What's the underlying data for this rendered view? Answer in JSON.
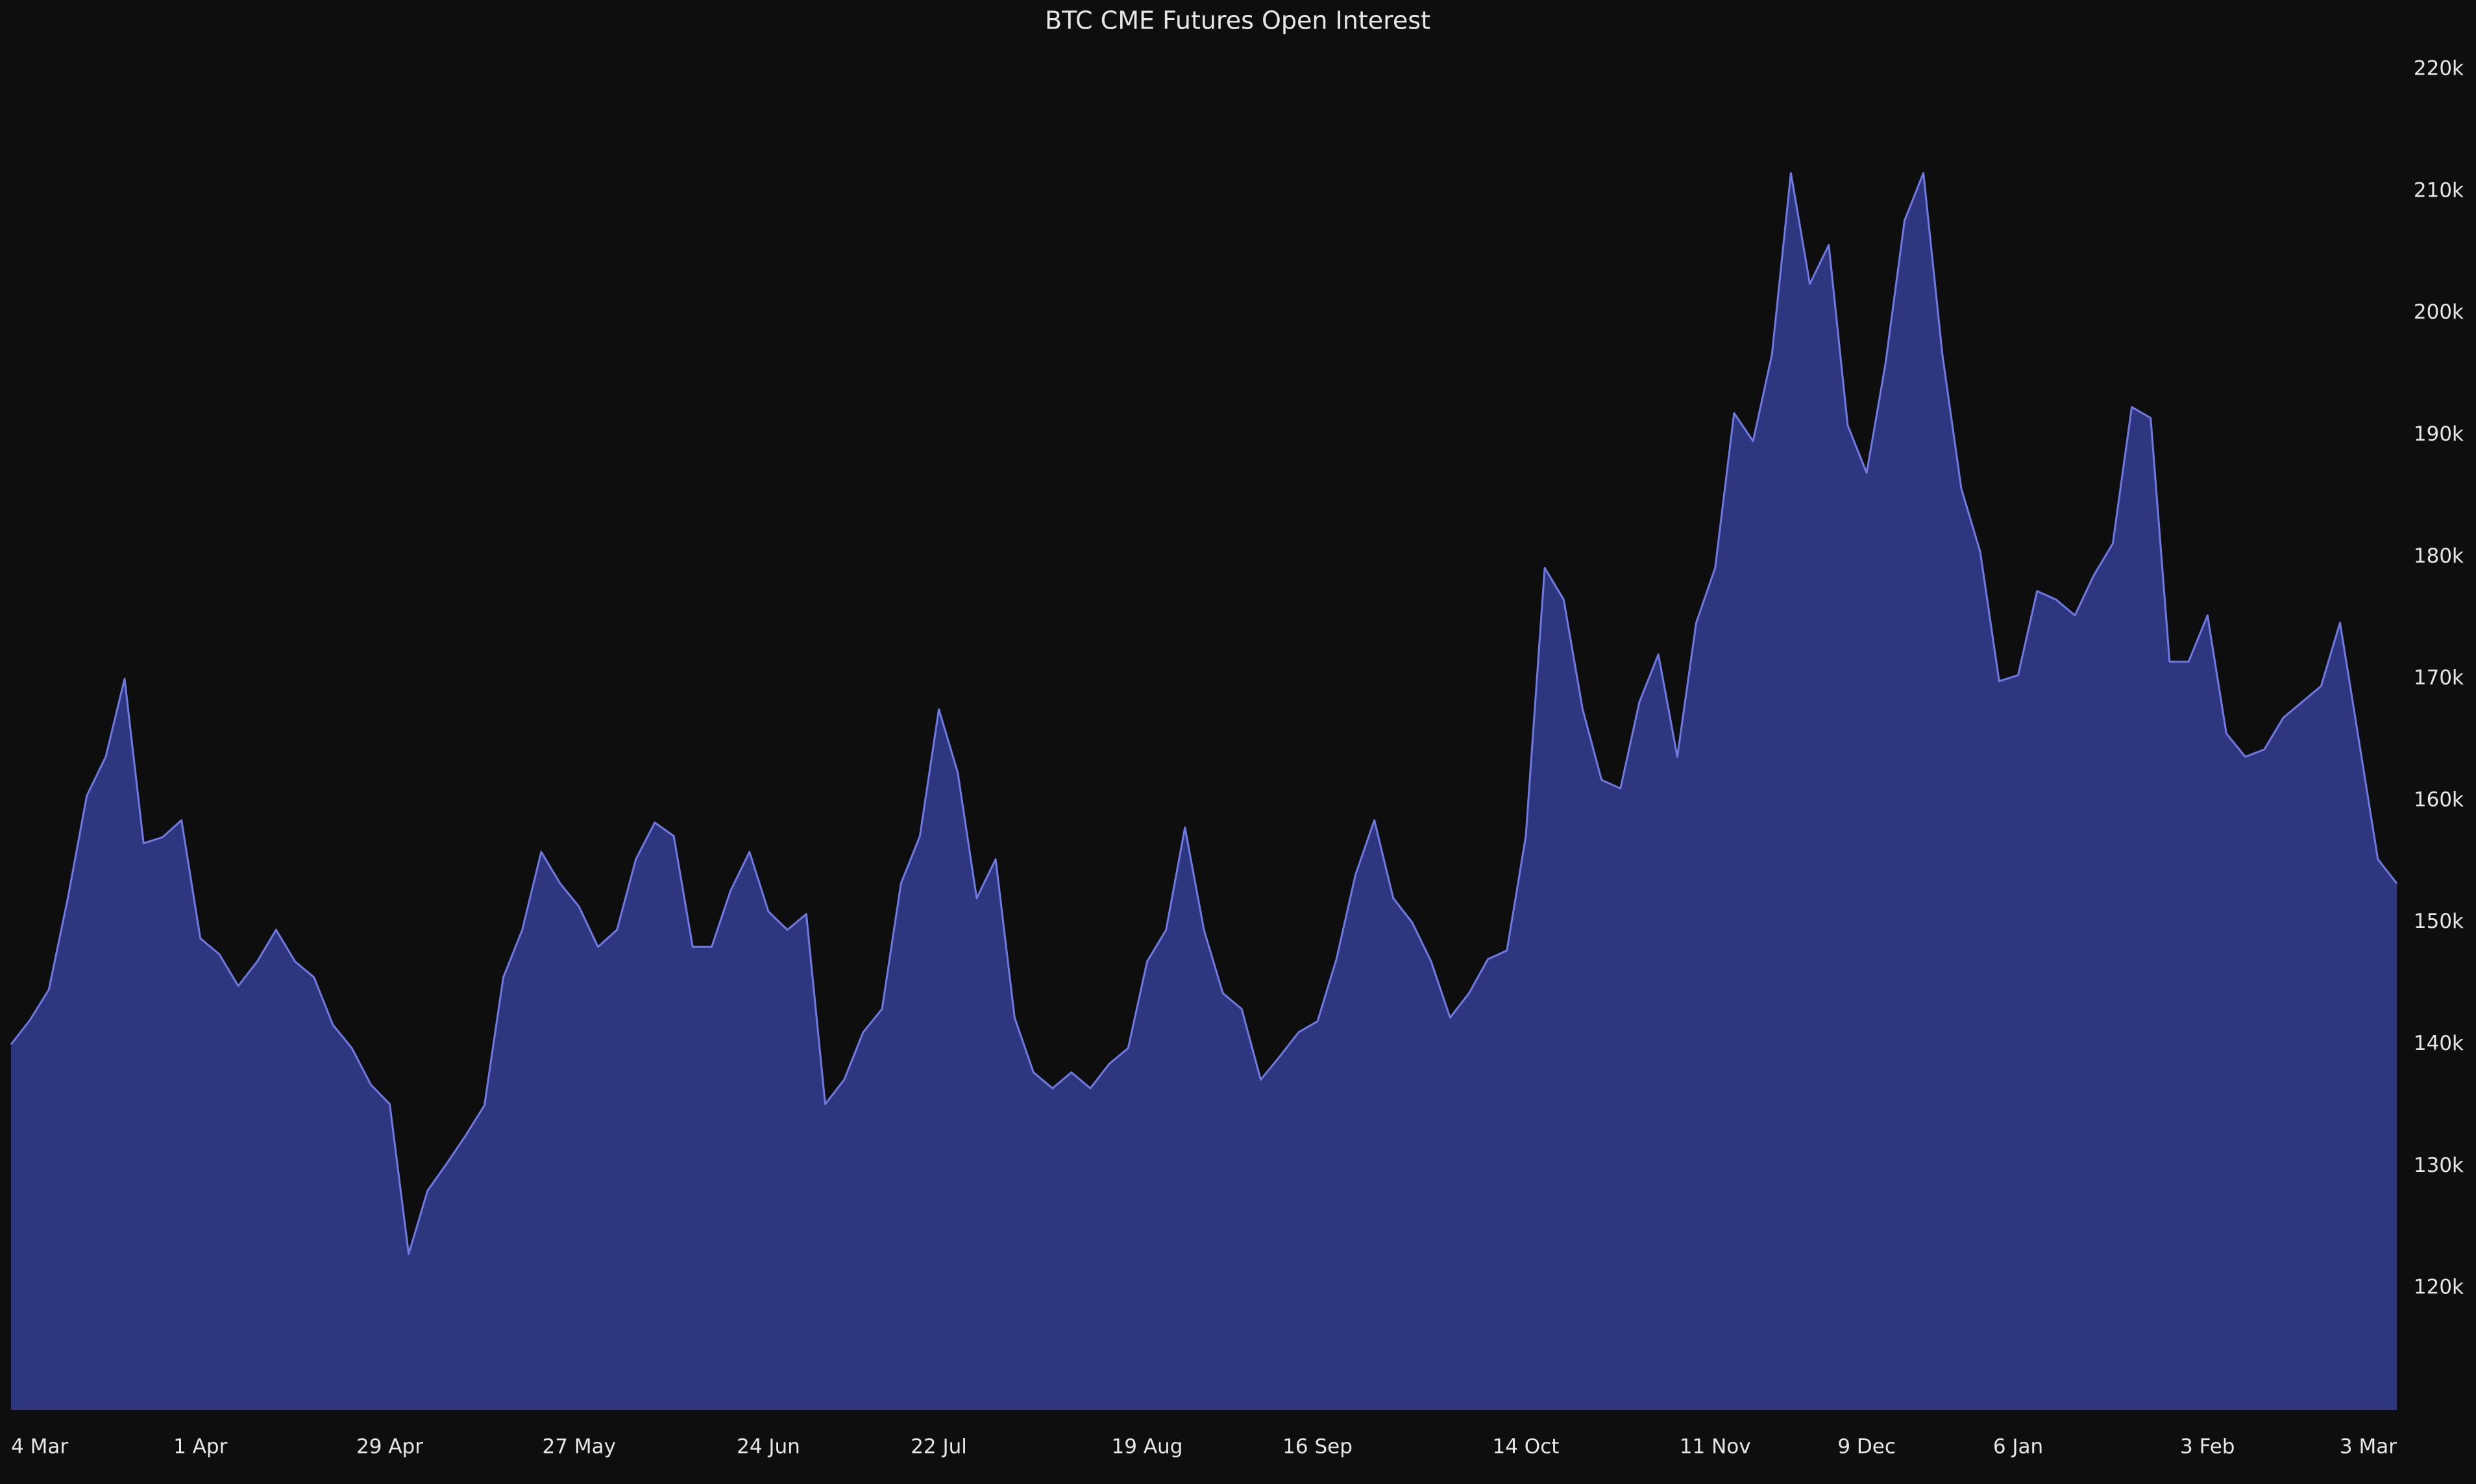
{
  "chart_data": {
    "type": "area",
    "title": "BTC CME Futures Open Interest",
    "categories": [
      "4 Mar",
      null,
      null,
      null,
      null,
      null,
      null,
      null,
      null,
      null,
      "1 Apr",
      null,
      null,
      null,
      null,
      null,
      null,
      null,
      null,
      null,
      "29 Apr",
      null,
      null,
      null,
      null,
      null,
      null,
      null,
      null,
      null,
      "27 May",
      null,
      null,
      null,
      null,
      null,
      null,
      null,
      null,
      null,
      "24 Jun",
      null,
      null,
      null,
      null,
      null,
      null,
      null,
      null,
      "22 Jul",
      null,
      null,
      null,
      null,
      null,
      null,
      null,
      null,
      null,
      null,
      "19 Aug",
      null,
      null,
      null,
      null,
      null,
      null,
      null,
      null,
      "16 Sep",
      null,
      null,
      null,
      null,
      null,
      null,
      null,
      null,
      null,
      null,
      "14 Oct",
      null,
      null,
      null,
      null,
      null,
      null,
      null,
      null,
      null,
      "11 Nov",
      null,
      null,
      null,
      null,
      null,
      null,
      null,
      "9 Dec",
      null,
      null,
      null,
      null,
      null,
      null,
      null,
      "6 Jan",
      null,
      null,
      null,
      null,
      null,
      null,
      null,
      null,
      null,
      "3 Feb",
      null,
      null,
      null,
      null,
      null,
      null,
      null,
      null,
      null,
      "3 Mar"
    ],
    "series": [
      {
        "color": "#6f79e0",
        "fill": "#2e3680",
        "values": [
          140000,
          142000,
          144500,
          152000,
          160400,
          163600,
          170000,
          156500,
          157000,
          158400,
          148700,
          147400,
          144800,
          146800,
          149400,
          146800,
          145500,
          141600,
          139700,
          136700,
          135100,
          122800,
          128000,
          130200,
          132500,
          135000,
          145500,
          149400,
          155800,
          153200,
          151300,
          148000,
          149400,
          155200,
          158200,
          157100,
          148000,
          148000,
          152600,
          155800,
          150900,
          149400,
          150700,
          135100,
          137100,
          141000,
          142900,
          153200,
          157100,
          167500,
          162300,
          152000,
          155200,
          142200,
          137700,
          136400,
          137700,
          136400,
          138400,
          139700,
          146800,
          149400,
          157800,
          149400,
          144200,
          142900,
          137100,
          139000,
          141000,
          141900,
          147000,
          153900,
          158400,
          152000,
          150000,
          146800,
          142200,
          144200,
          147000,
          147700,
          157100,
          179100,
          176500,
          167500,
          161700,
          161000,
          168100,
          172000,
          163600,
          174600,
          179100,
          191800,
          189500,
          196600,
          211500,
          202400,
          205600,
          190800,
          186900,
          195900,
          207600,
          211500,
          196600,
          185600,
          180400,
          169800,
          170300,
          177200,
          176500,
          175200,
          178500,
          181100,
          192300,
          191400,
          171400,
          171400,
          175200,
          165500,
          163600,
          164200,
          166800,
          168100,
          169400,
          174600,
          164900,
          155200,
          153200
        ]
      }
    ],
    "ylim": [
      110000,
      220000
    ],
    "yticks": [
      {
        "value": 120000,
        "label": "120k"
      },
      {
        "value": 130000,
        "label": "130k"
      },
      {
        "value": 140000,
        "label": "140k"
      },
      {
        "value": 150000,
        "label": "150k"
      },
      {
        "value": 160000,
        "label": "160k"
      },
      {
        "value": 170000,
        "label": "170k"
      },
      {
        "value": 180000,
        "label": "180k"
      },
      {
        "value": 190000,
        "label": "190k"
      },
      {
        "value": 200000,
        "label": "200k"
      },
      {
        "value": 210000,
        "label": "210k"
      },
      {
        "value": 220000,
        "label": "220k"
      }
    ],
    "grid": false
  }
}
